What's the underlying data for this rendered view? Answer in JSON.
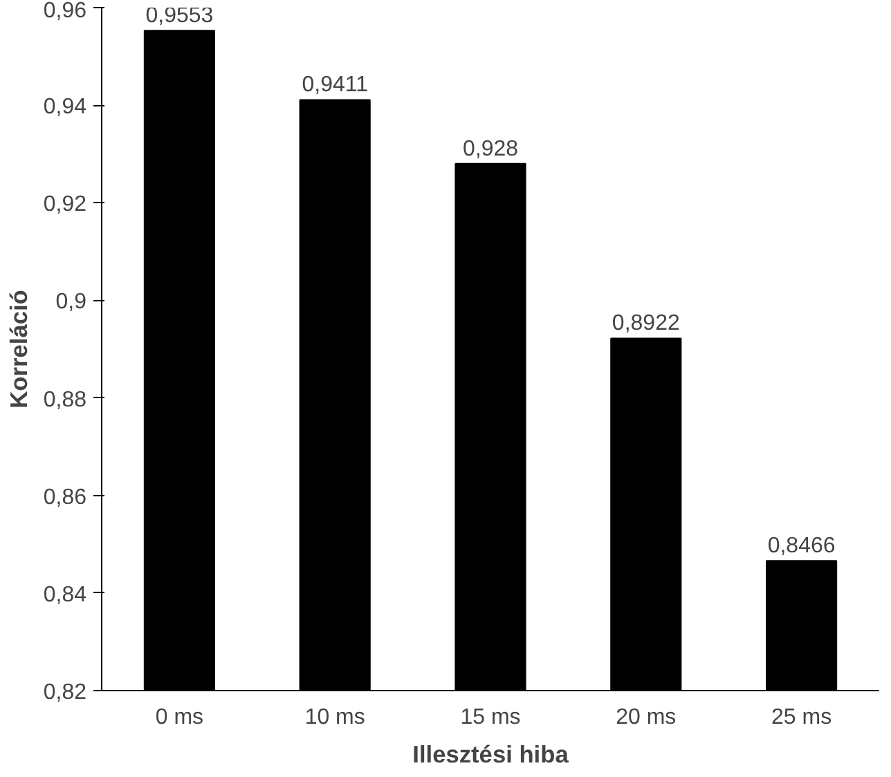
{
  "chart_data": {
    "type": "bar",
    "xlabel": "Illesztési hiba",
    "ylabel": "Korreláció",
    "categories": [
      "0 ms",
      "10 ms",
      "15 ms",
      "20 ms",
      "25 ms"
    ],
    "values": [
      0.9553,
      0.9411,
      0.928,
      0.8922,
      0.8466
    ],
    "value_labels": [
      "0,9553",
      "0,9411",
      "0,928",
      "0,8922",
      "0,8466"
    ],
    "color": "#000000",
    "ylim": [
      0.82,
      0.96
    ],
    "yticks": [
      {
        "value": 0.82,
        "label": "0,82"
      },
      {
        "value": 0.84,
        "label": "0,84"
      },
      {
        "value": 0.86,
        "label": "0,86"
      },
      {
        "value": 0.88,
        "label": "0,88"
      },
      {
        "value": 0.9,
        "label": "0,9"
      },
      {
        "value": 0.92,
        "label": "0,92"
      },
      {
        "value": 0.94,
        "label": "0,94"
      },
      {
        "value": 0.96,
        "label": "0,96"
      }
    ],
    "grid": false
  }
}
